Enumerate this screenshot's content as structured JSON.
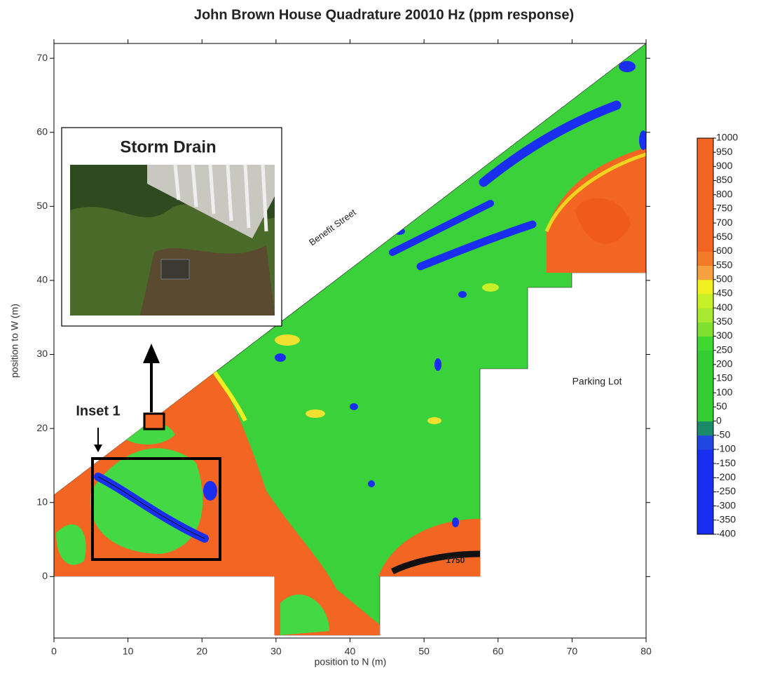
{
  "chart_data": {
    "type": "contour",
    "title": "John Brown House Quadrature 20010 Hz (ppm response)",
    "x_label": "position to N (m)",
    "y_label": "position to W (m)",
    "xlim": [
      0,
      80
    ],
    "ylim": [
      -8.3,
      72
    ],
    "xticks": [
      0,
      10,
      20,
      30,
      40,
      50,
      60,
      70,
      80
    ],
    "yticks": [
      0,
      10,
      20,
      30,
      40,
      50,
      60,
      70
    ],
    "colorbar": {
      "ticks": [
        -400,
        -350,
        -300,
        -250,
        -200,
        -150,
        -100,
        -50,
        0,
        50,
        100,
        150,
        200,
        250,
        300,
        350,
        400,
        450,
        500,
        550,
        600,
        650,
        700,
        750,
        800,
        850,
        900,
        950,
        1000
      ],
      "colors": [
        "#1a2ef0",
        "#1a2ef0",
        "#1a2ef0",
        "#1a2ef0",
        "#1a2ef0",
        "#1a2ef0",
        "#2048e0",
        "#1a8a6a",
        "#33cc33",
        "#33cc33",
        "#33cc33",
        "#33cc33",
        "#33cc33",
        "#40d830",
        "#80e030",
        "#a8e830",
        "#c8f028",
        "#f0f020",
        "#f7a040",
        "#f47a2a",
        "#f26522",
        "#f26522",
        "#f26522",
        "#f26522",
        "#f26522",
        "#f26522",
        "#f26522",
        "#f26522"
      ]
    },
    "annotations": {
      "street": "Benefit Street",
      "parking": "Parking Lot",
      "inset_title": "Storm Drain",
      "inset_label": "Inset 1",
      "contour_label": "1750"
    }
  }
}
